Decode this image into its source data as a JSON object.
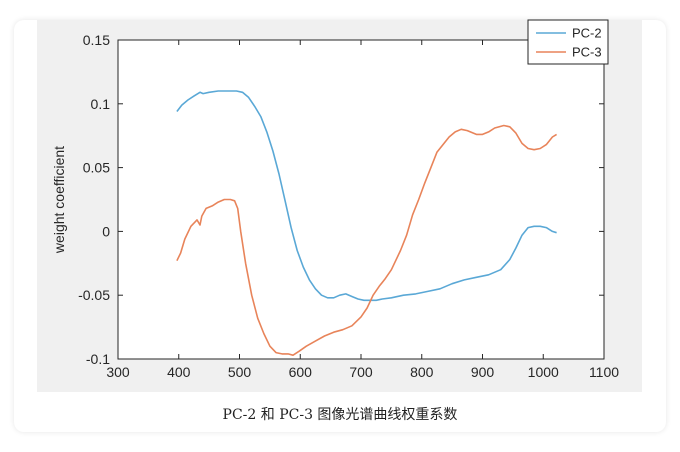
{
  "caption": "PC-2 和 PC-3 图像光谱曲线权重系数",
  "chart_data": {
    "type": "line",
    "title": "",
    "xlabel": "",
    "ylabel": "weight coefficient",
    "xlim": [
      300,
      1100
    ],
    "ylim": [
      -0.1,
      0.15
    ],
    "xticks": [
      "300",
      "400",
      "500",
      "600",
      "700",
      "800",
      "900",
      "1000",
      "1100"
    ],
    "yticks": [
      "-0.1",
      "-0.05",
      "0",
      "0.05",
      "0.1",
      "0.15"
    ],
    "legend": "top-right",
    "grid": false,
    "series": [
      {
        "name": "PC-2",
        "color": "#5aa8d6",
        "points": [
          [
            397,
            0.094
          ],
          [
            405,
            0.099
          ],
          [
            415,
            0.103
          ],
          [
            425,
            0.106
          ],
          [
            435,
            0.109
          ],
          [
            440,
            0.108
          ],
          [
            450,
            0.109
          ],
          [
            465,
            0.11
          ],
          [
            480,
            0.11
          ],
          [
            495,
            0.11
          ],
          [
            505,
            0.109
          ],
          [
            515,
            0.105
          ],
          [
            525,
            0.098
          ],
          [
            535,
            0.09
          ],
          [
            545,
            0.078
          ],
          [
            555,
            0.063
          ],
          [
            565,
            0.045
          ],
          [
            575,
            0.024
          ],
          [
            585,
            0.003
          ],
          [
            595,
            -0.015
          ],
          [
            605,
            -0.028
          ],
          [
            615,
            -0.038
          ],
          [
            625,
            -0.045
          ],
          [
            635,
            -0.05
          ],
          [
            645,
            -0.052
          ],
          [
            655,
            -0.052
          ],
          [
            665,
            -0.05
          ],
          [
            675,
            -0.049
          ],
          [
            685,
            -0.051
          ],
          [
            695,
            -0.053
          ],
          [
            705,
            -0.054
          ],
          [
            715,
            -0.054
          ],
          [
            725,
            -0.054
          ],
          [
            735,
            -0.053
          ],
          [
            750,
            -0.052
          ],
          [
            770,
            -0.05
          ],
          [
            790,
            -0.049
          ],
          [
            810,
            -0.047
          ],
          [
            830,
            -0.045
          ],
          [
            850,
            -0.041
          ],
          [
            870,
            -0.038
          ],
          [
            890,
            -0.036
          ],
          [
            910,
            -0.034
          ],
          [
            930,
            -0.03
          ],
          [
            945,
            -0.022
          ],
          [
            955,
            -0.013
          ],
          [
            965,
            -0.003
          ],
          [
            975,
            0.003
          ],
          [
            985,
            0.004
          ],
          [
            995,
            0.004
          ],
          [
            1005,
            0.003
          ],
          [
            1015,
            0.0
          ],
          [
            1022,
            -0.001
          ]
        ]
      },
      {
        "name": "PC-3",
        "color": "#e8845a",
        "points": [
          [
            397,
            -0.023
          ],
          [
            403,
            -0.017
          ],
          [
            410,
            -0.006
          ],
          [
            420,
            0.004
          ],
          [
            430,
            0.009
          ],
          [
            435,
            0.005
          ],
          [
            438,
            0.012
          ],
          [
            445,
            0.018
          ],
          [
            455,
            0.02
          ],
          [
            465,
            0.023
          ],
          [
            475,
            0.025
          ],
          [
            485,
            0.025
          ],
          [
            492,
            0.024
          ],
          [
            497,
            0.018
          ],
          [
            502,
            0.0
          ],
          [
            510,
            -0.025
          ],
          [
            520,
            -0.05
          ],
          [
            530,
            -0.068
          ],
          [
            540,
            -0.08
          ],
          [
            550,
            -0.09
          ],
          [
            560,
            -0.095
          ],
          [
            570,
            -0.096
          ],
          [
            580,
            -0.096
          ],
          [
            588,
            -0.097
          ],
          [
            598,
            -0.094
          ],
          [
            610,
            -0.09
          ],
          [
            625,
            -0.086
          ],
          [
            640,
            -0.082
          ],
          [
            655,
            -0.079
          ],
          [
            670,
            -0.077
          ],
          [
            685,
            -0.074
          ],
          [
            700,
            -0.067
          ],
          [
            710,
            -0.06
          ],
          [
            720,
            -0.05
          ],
          [
            730,
            -0.043
          ],
          [
            740,
            -0.037
          ],
          [
            750,
            -0.03
          ],
          [
            765,
            -0.015
          ],
          [
            775,
            -0.003
          ],
          [
            785,
            0.013
          ],
          [
            795,
            0.025
          ],
          [
            805,
            0.038
          ],
          [
            815,
            0.05
          ],
          [
            825,
            0.062
          ],
          [
            835,
            0.068
          ],
          [
            845,
            0.074
          ],
          [
            855,
            0.078
          ],
          [
            865,
            0.08
          ],
          [
            875,
            0.079
          ],
          [
            890,
            0.076
          ],
          [
            900,
            0.076
          ],
          [
            910,
            0.078
          ],
          [
            920,
            0.081
          ],
          [
            935,
            0.083
          ],
          [
            945,
            0.082
          ],
          [
            955,
            0.077
          ],
          [
            965,
            0.069
          ],
          [
            975,
            0.065
          ],
          [
            985,
            0.064
          ],
          [
            995,
            0.065
          ],
          [
            1005,
            0.068
          ],
          [
            1015,
            0.074
          ],
          [
            1022,
            0.076
          ]
        ]
      }
    ]
  }
}
